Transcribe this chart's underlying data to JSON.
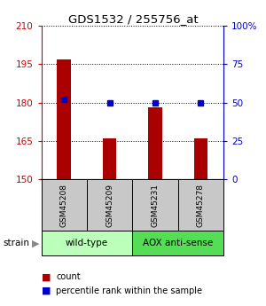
{
  "title": "GDS1532 / 255756_at",
  "samples": [
    "GSM45208",
    "GSM45209",
    "GSM45231",
    "GSM45278"
  ],
  "counts": [
    197,
    166,
    178,
    166
  ],
  "percentiles": [
    52,
    50,
    50,
    50
  ],
  "ylim_left": [
    150,
    210
  ],
  "ylim_right": [
    0,
    100
  ],
  "yticks_left": [
    150,
    165,
    180,
    195,
    210
  ],
  "yticks_right": [
    0,
    25,
    50,
    75,
    100
  ],
  "ytick_labels_right": [
    "0",
    "25",
    "50",
    "75",
    "100%"
  ],
  "bar_color": "#AA0000",
  "dot_color": "#0000CC",
  "bar_bottom": 150,
  "groups": [
    {
      "label": "wild-type",
      "indices": [
        0,
        1
      ],
      "color": "#BBFFBB"
    },
    {
      "label": "AOX anti-sense",
      "indices": [
        2,
        3
      ],
      "color": "#55DD55"
    }
  ],
  "strain_label": "strain",
  "legend_count_label": "count",
  "legend_pct_label": "percentile rank within the sample",
  "left_axis_color": "#CC0000",
  "right_axis_color": "#0000CC",
  "sample_box_color": "#C8C8C8",
  "figsize": [
    3.0,
    3.45
  ],
  "dpi": 100
}
